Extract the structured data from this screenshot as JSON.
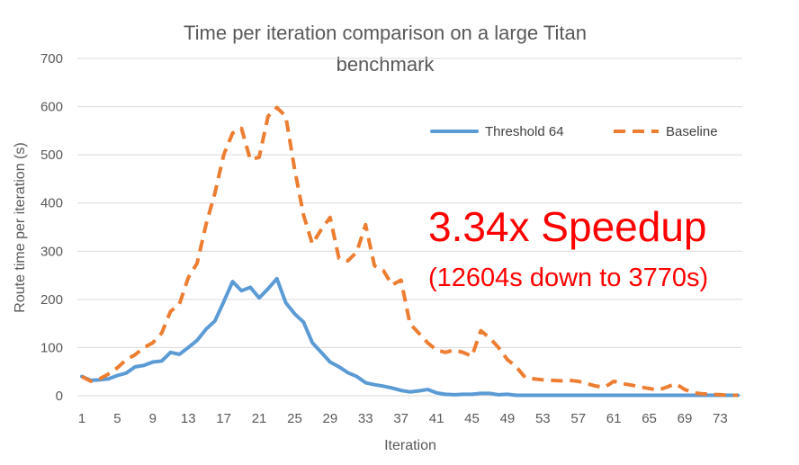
{
  "chart_data": {
    "type": "line",
    "title_lines": [
      "Time per iteration comparison on a large Titan",
      "benchmark"
    ],
    "xlabel": "Iteration",
    "ylabel": "Route time per iteration (s)",
    "ylim": [
      0,
      700
    ],
    "y_ticks": [
      0,
      100,
      200,
      300,
      400,
      500,
      600,
      700
    ],
    "x_ticks": [
      "1",
      "5",
      "9",
      "13",
      "17",
      "21",
      "25",
      "29",
      "33",
      "37",
      "41",
      "45",
      "49",
      "53",
      "57",
      "61",
      "65",
      "69",
      "73"
    ],
    "grid": true,
    "legend_position": "top-right",
    "x": [
      1,
      2,
      3,
      4,
      5,
      6,
      7,
      8,
      9,
      10,
      11,
      12,
      13,
      14,
      15,
      16,
      17,
      18,
      19,
      20,
      21,
      22,
      23,
      24,
      25,
      26,
      27,
      28,
      29,
      30,
      31,
      32,
      33,
      34,
      35,
      36,
      37,
      38,
      39,
      40,
      41,
      42,
      43,
      44,
      45,
      46,
      47,
      48,
      49,
      50,
      51,
      52,
      53,
      54,
      55,
      56,
      57,
      58,
      59,
      60,
      61,
      62,
      63,
      64,
      65,
      66,
      67,
      68,
      69,
      70,
      71,
      72,
      73,
      74,
      75
    ],
    "series": [
      {
        "name": "Threshold 64",
        "style": "solid",
        "color": "#5b9bd5",
        "values": [
          40,
          32,
          33,
          35,
          42,
          47,
          60,
          63,
          70,
          72,
          90,
          86,
          100,
          115,
          138,
          155,
          195,
          237,
          218,
          225,
          203,
          222,
          243,
          193,
          170,
          153,
          110,
          90,
          70,
          60,
          48,
          40,
          27,
          23,
          20,
          16,
          11,
          8,
          10,
          13,
          6,
          3,
          2,
          3,
          3,
          5,
          5,
          2,
          3,
          1,
          1,
          1,
          1,
          1,
          1,
          1,
          1,
          1,
          1,
          1,
          1,
          1,
          1,
          1,
          1,
          1,
          1,
          1,
          1,
          1,
          1,
          1,
          1,
          1,
          1
        ]
      },
      {
        "name": "Baseline",
        "style": "dashed",
        "color": "#ed7d31",
        "values": [
          40,
          30,
          35,
          45,
          58,
          75,
          85,
          100,
          110,
          130,
          175,
          190,
          245,
          275,
          355,
          420,
          500,
          545,
          555,
          490,
          495,
          580,
          598,
          580,
          470,
          375,
          315,
          345,
          370,
          285,
          280,
          298,
          355,
          270,
          260,
          230,
          240,
          150,
          130,
          110,
          95,
          90,
          95,
          90,
          82,
          135,
          120,
          100,
          75,
          60,
          38,
          35,
          33,
          32,
          31,
          32,
          30,
          25,
          20,
          18,
          30,
          25,
          22,
          18,
          15,
          12,
          18,
          25,
          13,
          6,
          4,
          3,
          2,
          1,
          1
        ]
      }
    ],
    "annotations": {
      "speedup": "3.34x Speedup",
      "detail": "(12604s down to 3770s)"
    }
  }
}
